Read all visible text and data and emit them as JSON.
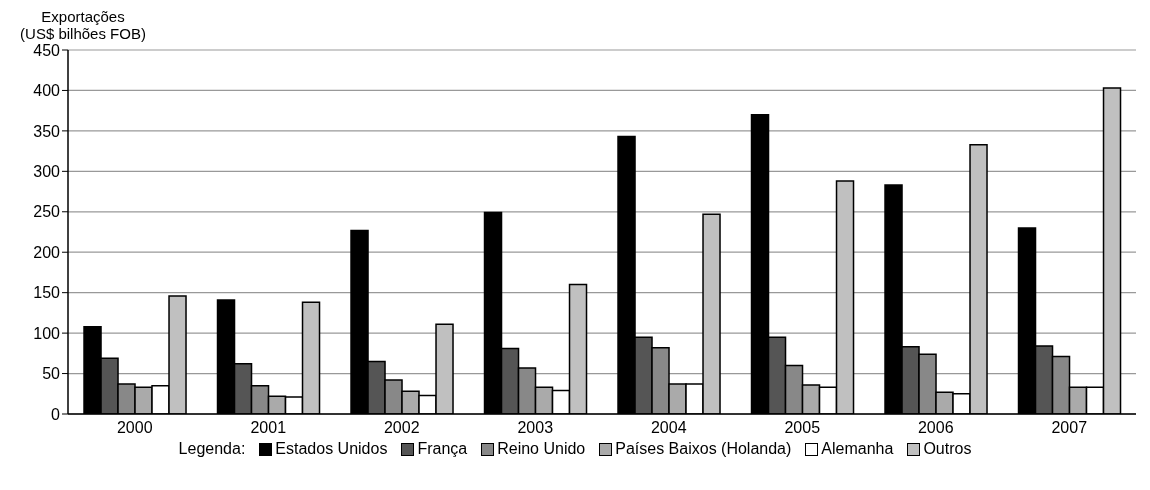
{
  "chart_data": {
    "type": "bar",
    "ylabel": "Exportações\n(US$ bilhões FOB)",
    "legend_title": "Legenda:",
    "legend": "bottom",
    "grid": "y",
    "categories": [
      "2000",
      "2001",
      "2002",
      "2003",
      "2004",
      "2005",
      "2006",
      "2007"
    ],
    "ylim": [
      0,
      450
    ],
    "yticks": [
      0,
      50,
      100,
      150,
      200,
      250,
      300,
      350,
      400,
      450
    ],
    "series": [
      {
        "name": "Estados Unidos",
        "color": "#000000",
        "values": [
          108,
          141,
          227,
          249,
          343,
          370,
          283,
          230
        ]
      },
      {
        "name": "França",
        "color": "#555555",
        "values": [
          69,
          62,
          65,
          81,
          95,
          95,
          83,
          84
        ]
      },
      {
        "name": "Reino Unido",
        "color": "#888888",
        "values": [
          37,
          35,
          42,
          57,
          82,
          60,
          74,
          71
        ]
      },
      {
        "name": "Países Baixos (Holanda)",
        "color": "#aaaaaa",
        "values": [
          33,
          22,
          28,
          33,
          37,
          36,
          27,
          33
        ]
      },
      {
        "name": "Alemanha",
        "color": "#ffffff",
        "values": [
          35,
          21,
          23,
          29,
          37,
          33,
          25,
          33
        ]
      },
      {
        "name": "Outros",
        "color": "#c0c0c0",
        "values": [
          146,
          138,
          111,
          160,
          247,
          288,
          333,
          403
        ]
      }
    ]
  }
}
